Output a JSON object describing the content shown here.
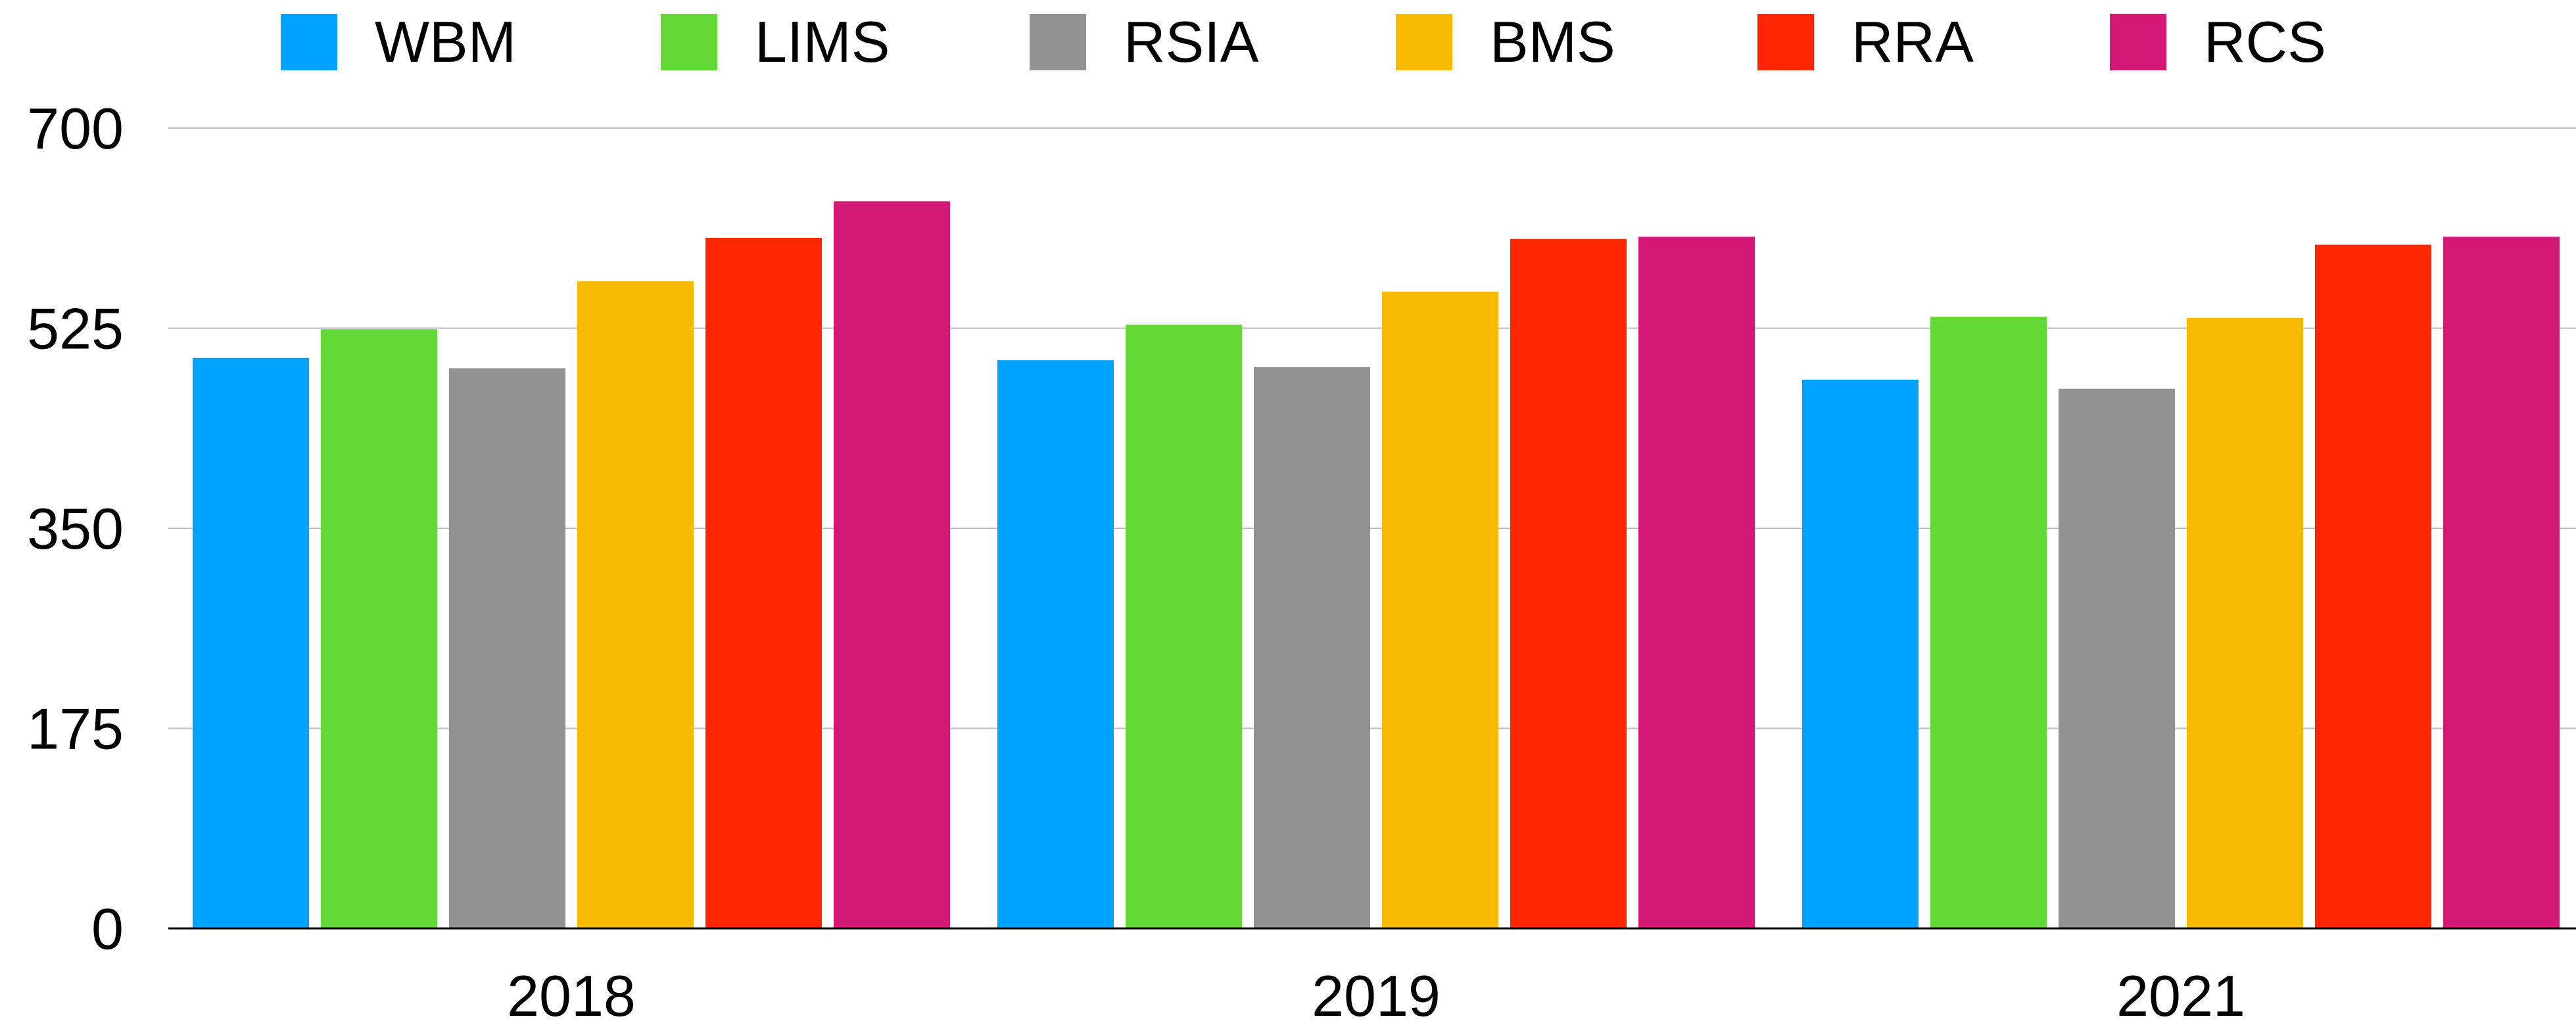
{
  "chart_data": {
    "type": "bar",
    "categories": [
      "2018",
      "2019",
      "2021"
    ],
    "series": [
      {
        "name": "WBM",
        "color": "#00A2FF",
        "values": [
          499,
          497,
          480
        ]
      },
      {
        "name": "LIMS",
        "color": "#61D836",
        "values": [
          524,
          528,
          535
        ]
      },
      {
        "name": "RSIA",
        "color": "#929292",
        "values": [
          490,
          491,
          472
        ]
      },
      {
        "name": "BMS",
        "color": "#F8BA00",
        "values": [
          566,
          557,
          534
        ]
      },
      {
        "name": "RRA",
        "color": "#FF2600",
        "values": [
          604,
          603,
          598
        ]
      },
      {
        "name": "RCS",
        "color": "#D41876",
        "values": [
          636,
          605,
          605
        ]
      }
    ],
    "ylim": [
      0,
      700
    ],
    "yticks": [
      "0",
      "175",
      "350",
      "525",
      "700"
    ],
    "grid": true,
    "legend_position": "top"
  }
}
